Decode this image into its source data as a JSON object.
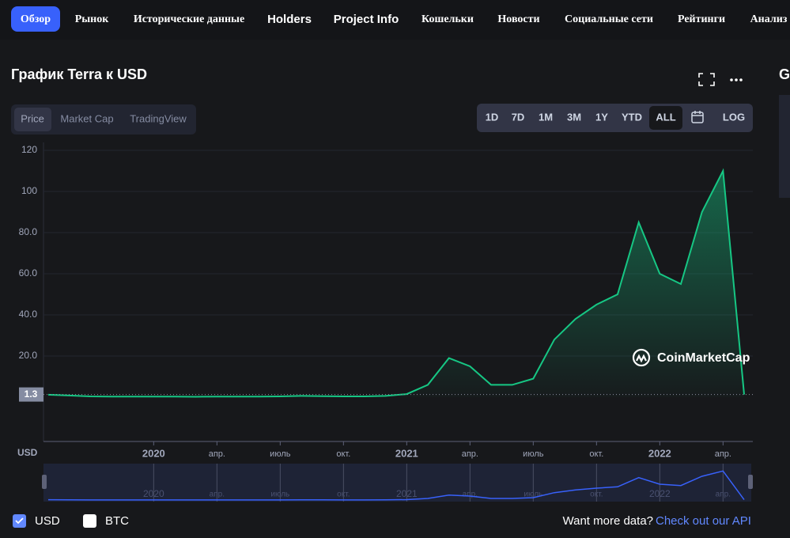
{
  "nav": {
    "items": [
      "Обзор",
      "Рынок",
      "Исторические данные",
      "Holders",
      "Project Info",
      "Кошельки",
      "Новости",
      "Социальные сети",
      "Рейтинги",
      "Анализ"
    ]
  },
  "header": {
    "title": "График Terra к USD",
    "side_letter": "G"
  },
  "tabs": [
    "Price",
    "Market Cap",
    "TradingView"
  ],
  "ranges": [
    "1D",
    "7D",
    "1M",
    "3M",
    "1Y",
    "YTD",
    "ALL"
  ],
  "log_button": "LOG",
  "watermark": "CoinMarketCap",
  "footer": {
    "text": "Want more data?",
    "link": "Check out our API"
  },
  "chart_data": {
    "type": "line",
    "axis_label": "USD",
    "x": [
      "2019-08",
      "2019-09",
      "2019-10",
      "2019-11",
      "2019-12",
      "2020-01",
      "2020-02",
      "2020-03",
      "2020-04",
      "2020-05",
      "2020-06",
      "2020-07",
      "2020-08",
      "2020-09",
      "2020-10",
      "2020-11",
      "2020-12",
      "2021-01",
      "2021-02",
      "2021-03",
      "2021-04",
      "2021-05",
      "2021-06",
      "2021-07",
      "2021-08",
      "2021-09",
      "2021-10",
      "2021-11",
      "2021-12",
      "2022-01",
      "2022-02",
      "2022-03",
      "2022-04",
      "2022-05"
    ],
    "series": [
      {
        "name": "USD",
        "color": "#16c784",
        "values": [
          1.2,
          0.8,
          0.4,
          0.3,
          0.3,
          0.3,
          0.3,
          0.2,
          0.3,
          0.3,
          0.3,
          0.4,
          0.6,
          0.5,
          0.4,
          0.4,
          0.6,
          1.5,
          6,
          19,
          15,
          6,
          6,
          9,
          28,
          38,
          45,
          50,
          85,
          60,
          55,
          90,
          110,
          1.3
        ]
      }
    ],
    "other_legend": [
      "BTC"
    ],
    "last_price": 1.3,
    "xlim": [
      "2019-08",
      "2022-05"
    ],
    "xticks": [
      {
        "value": "2020-01",
        "label": "2020"
      },
      {
        "value": "2020-04",
        "label": "апр."
      },
      {
        "value": "2020-07",
        "label": "июль"
      },
      {
        "value": "2020-10",
        "label": "окт."
      },
      {
        "value": "2021-01",
        "label": "2021"
      },
      {
        "value": "2021-04",
        "label": "апр."
      },
      {
        "value": "2021-07",
        "label": "июль"
      },
      {
        "value": "2021-10",
        "label": "окт."
      },
      {
        "value": "2022-01",
        "label": "2022"
      },
      {
        "value": "2022-04",
        "label": "апр."
      }
    ],
    "ylim": [
      0,
      120
    ],
    "yticks": [
      {
        "value": 20,
        "label": "20.0"
      },
      {
        "value": 40,
        "label": "40.0"
      },
      {
        "value": 60,
        "label": "60.0"
      },
      {
        "value": 80,
        "label": "80.0"
      },
      100,
      120
    ],
    "grid": true
  }
}
